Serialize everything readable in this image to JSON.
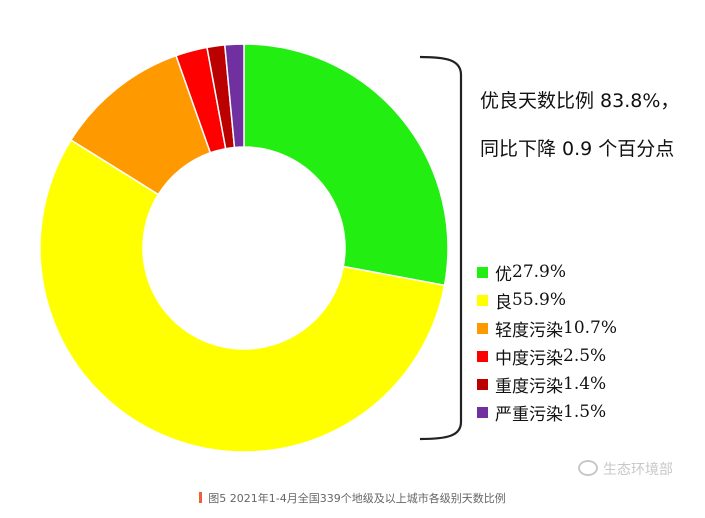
{
  "chart_data": {
    "type": "pie",
    "style": "donut",
    "categories": [
      "优",
      "良",
      "轻度污染",
      "中度污染",
      "重度污染",
      "严重污染"
    ],
    "values": [
      27.9,
      55.9,
      10.7,
      2.5,
      1.4,
      1.5
    ],
    "value_labels": [
      "27.9%",
      "55.9%",
      "10.7%",
      "2.5%",
      "1.4%",
      "1.5%"
    ],
    "colors": [
      "#22ee11",
      "#ffff00",
      "#ff9900",
      "#ff0000",
      "#bb0000",
      "#7030a0"
    ],
    "legend_position": "right",
    "annotations": [
      "优良天数比例 83.8%，",
      "同比下降 0.9 个百分点"
    ],
    "caption": "图5 2021年1-4月全国339个地级及以上城市各级别天数比例"
  },
  "watermark": {
    "icon": "weibo-icon",
    "text": "生态环境部"
  },
  "caption_bar_color": "#e8623a"
}
